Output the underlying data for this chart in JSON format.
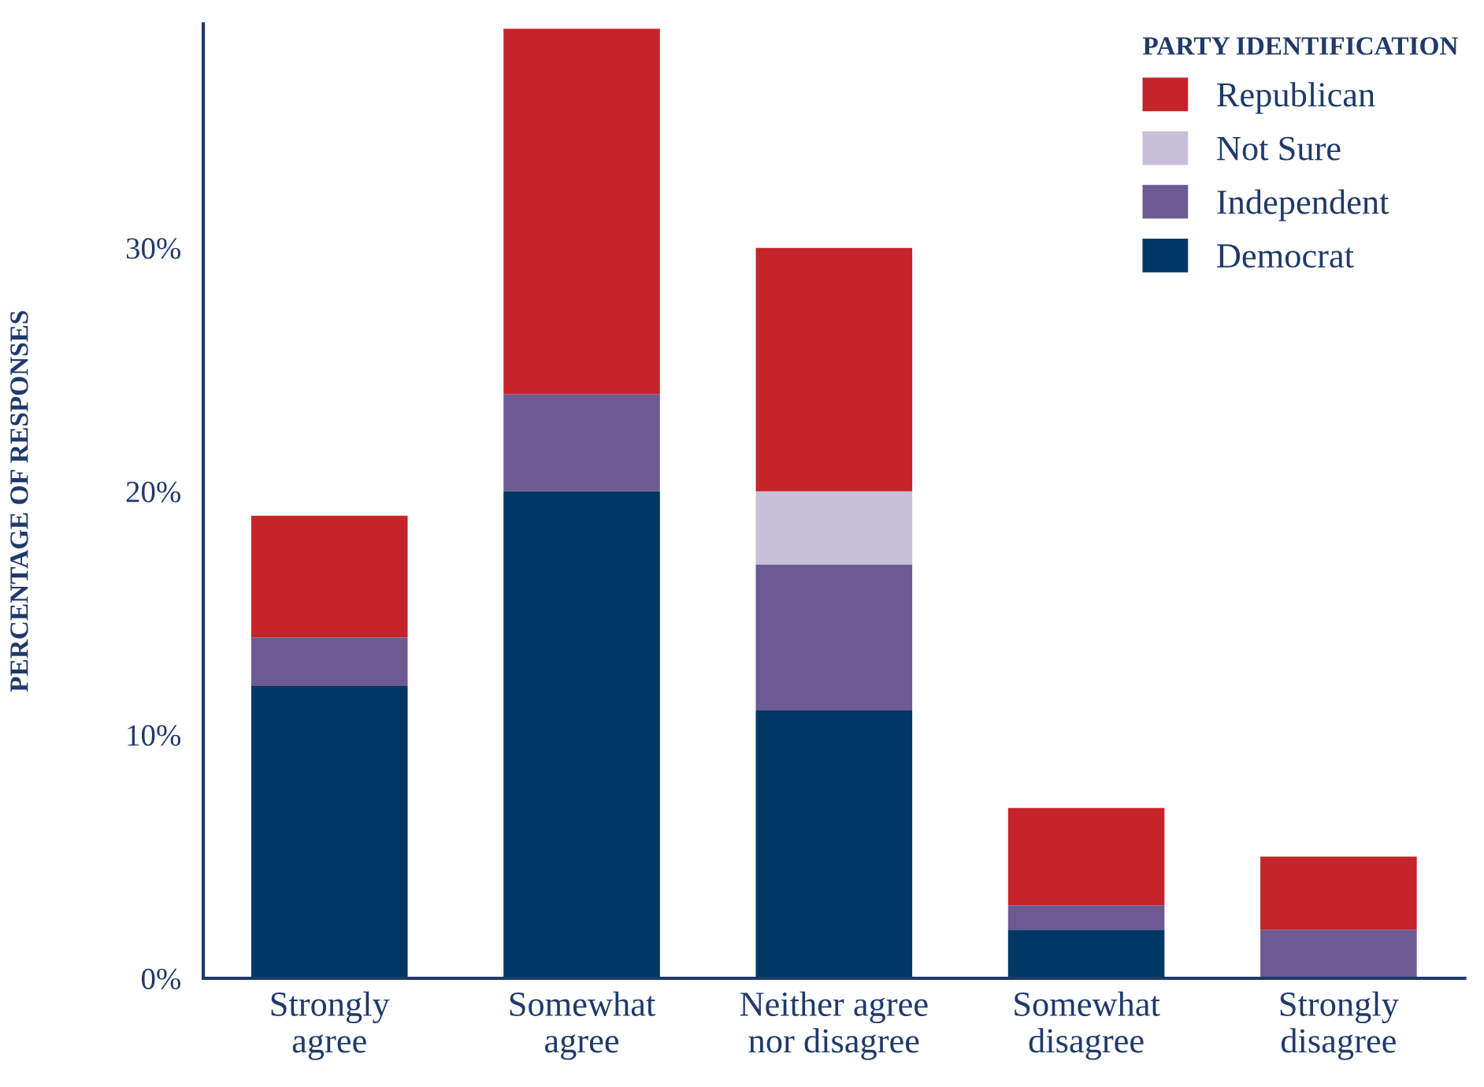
{
  "chart_data": {
    "type": "bar",
    "stacked": true,
    "ylabel": "PERCENTAGE OF RESPONSES",
    "legend_title": "PARTY IDENTIFICATION",
    "legend": "top right",
    "grid": false,
    "categories": [
      "Strongly\nagree",
      "Somewhat\nagree",
      "Neither agree\nnor disagree",
      "Somewhat\ndisagree",
      "Strongly\ndisagree"
    ],
    "series": [
      {
        "name": "Democrat",
        "color": "#003764",
        "values": [
          12,
          20,
          11,
          2,
          0
        ]
      },
      {
        "name": "Independent",
        "color": "#6d5a93",
        "values": [
          2,
          4,
          6,
          1,
          2
        ]
      },
      {
        "name": "Not Sure",
        "color": "#c8bfdb",
        "values": [
          0,
          0,
          3,
          0,
          0
        ]
      },
      {
        "name": "Republican",
        "color": "#c4242a",
        "values": [
          5,
          15,
          10,
          4,
          3
        ]
      }
    ],
    "ylim": [
      0,
      39.2
    ],
    "yticks": [
      {
        "value": 0,
        "label": "0%"
      },
      {
        "value": 10,
        "label": "10%"
      },
      {
        "value": 20,
        "label": "20%"
      },
      {
        "value": 30,
        "label": "30%"
      }
    ]
  }
}
